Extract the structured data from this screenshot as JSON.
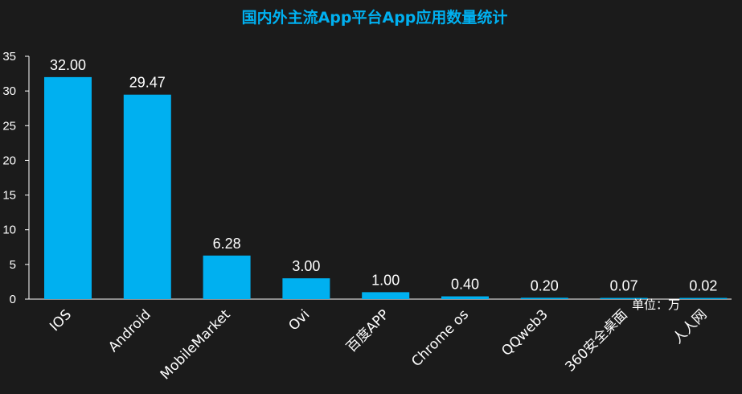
{
  "colors": {
    "background": "#1b1b1b",
    "bar": "#00b0f0",
    "title": "#00b0f0",
    "text": "#ffffff",
    "axis": "#ffffff"
  },
  "chart_data": {
    "type": "bar",
    "title": "国内外主流App平台App应用数量统计",
    "unit_label": "单位：万",
    "categories": [
      "IOS",
      "Android",
      "MobileMarket",
      "Ovi",
      "百度APP",
      "Chrome os",
      "QQweb3",
      "360安全桌面",
      "人人网"
    ],
    "values": [
      32.0,
      29.47,
      6.28,
      3.0,
      1.0,
      0.4,
      0.2,
      0.07,
      0.02
    ],
    "value_labels": [
      "32.00",
      "29.47",
      "6.28",
      "3.00",
      "1.00",
      "0.40",
      "0.20",
      "0.07",
      "0.02"
    ],
    "y_ticks": [
      0,
      5,
      10,
      15,
      20,
      25,
      30,
      35
    ],
    "ylim": [
      0,
      35
    ],
    "grid": false,
    "legend": "none"
  }
}
